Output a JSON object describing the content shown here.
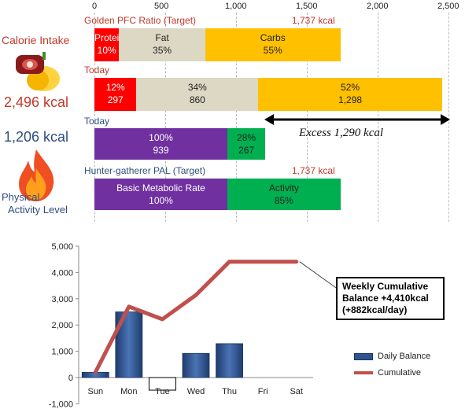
{
  "top": {
    "axis_ticks": [
      0,
      500,
      1000,
      1500,
      2000,
      2500
    ],
    "axis_max": 2500,
    "rows": [
      {
        "label": "Golden PFC Ratio (Target)",
        "total_label": "1,737 kcal",
        "segments": [
          {
            "name": "Protein",
            "value": 174,
            "pct": "10%",
            "color": "#ff0000",
            "text_color": "#ffffff"
          },
          {
            "name": "Fat",
            "value": 608,
            "pct": "35%",
            "color": "#ddd8c4",
            "text_color": "#222222"
          },
          {
            "name": "Carbs",
            "value": 955,
            "pct": "55%",
            "color": "#ffc000",
            "text_color": "#222222"
          }
        ]
      },
      {
        "label": "Today",
        "total_label": "",
        "segments": [
          {
            "name": "",
            "value": 297,
            "pct": "12%",
            "kcal": "297",
            "color": "#ff0000",
            "text_color": "#ffffff"
          },
          {
            "name": "",
            "value": 860,
            "pct": "34%",
            "kcal": "860",
            "color": "#ddd8c4",
            "text_color": "#222222"
          },
          {
            "name": "",
            "value": 1298,
            "pct": "52%",
            "kcal": "1,298",
            "color": "#ffc000",
            "text_color": "#222222"
          }
        ]
      },
      {
        "label": "Today",
        "total_label": "",
        "segments": [
          {
            "name": "",
            "value": 939,
            "pct": "100%",
            "kcal": "939",
            "color": "#7030a0",
            "text_color": "#ffffff"
          },
          {
            "name": "",
            "value": 267,
            "pct": "28%",
            "kcal": "267",
            "color": "#00b050",
            "text_color": "#222222"
          }
        ]
      },
      {
        "label": "Hunter-gatherer  PAL (Target)",
        "total_label": "1,737 kcal",
        "segments": [
          {
            "name": "Basic Metabolic Rate",
            "value": 939,
            "pct": "100%",
            "color": "#7030a0",
            "text_color": "#ffffff"
          },
          {
            "name": "Activity",
            "value": 798,
            "pct": "85%",
            "color": "#00b050",
            "text_color": "#222222"
          }
        ]
      }
    ],
    "excess_label": "Excess 1,290 kcal"
  },
  "left_panel": {
    "intake_title": "Calorie Intake",
    "intake_value": "2,496 kcal",
    "burn_value": "1,206 kcal",
    "activity_label_1": "Physical",
    "activity_label_2": "Activity Level"
  },
  "chart_data": {
    "type": "bar",
    "categories": [
      "Sun",
      "Mon",
      "Tue",
      "Wed",
      "Thu",
      "Fri",
      "Sat"
    ],
    "series": [
      {
        "name": "Daily Balance",
        "type": "bar",
        "values": [
          200,
          2500,
          -480,
          920,
          1290,
          null,
          null
        ]
      },
      {
        "name": "Cumulative",
        "type": "line",
        "values": [
          200,
          2700,
          2220,
          3140,
          4410,
          4410,
          4410
        ]
      }
    ],
    "yticks": [
      "5,000",
      "4,000",
      "3,000",
      "2,000",
      "1,000",
      "0",
      "-1,000"
    ],
    "ylim": [
      -1000,
      5000
    ],
    "legend_position": "right",
    "annotation": {
      "line1": "Weekly Cumulative",
      "line2": "Balance +4,410kcal",
      "line3": "(+882kcal/day)"
    },
    "colors": {
      "bar": "#2e5591",
      "line": "#c0504d"
    }
  }
}
